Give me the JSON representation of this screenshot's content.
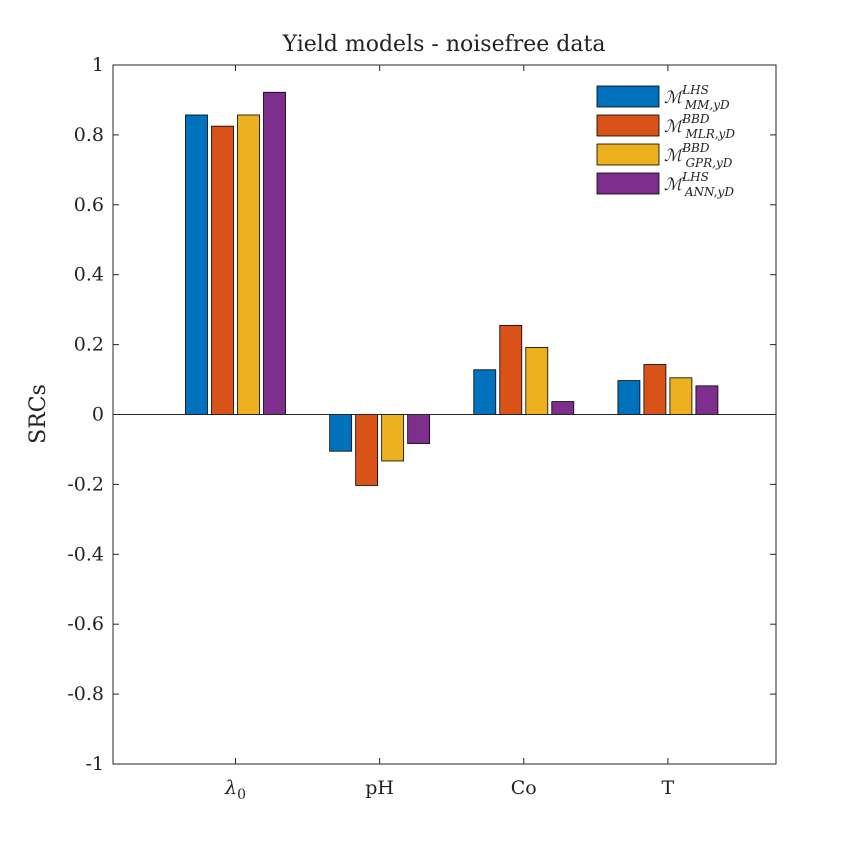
{
  "chart_data": {
    "type": "bar",
    "title": "Yield models - noisefree data",
    "xlabel": "",
    "ylabel": "SRCs",
    "categories": [
      "λ",
      "pH",
      "Co",
      "T"
    ],
    "category_subscripts": [
      "0",
      "",
      "",
      ""
    ],
    "ylim": [
      -1,
      1
    ],
    "yticks": [
      -1,
      -0.8,
      -0.6,
      -0.4,
      -0.2,
      0,
      0.2,
      0.4,
      0.6,
      0.8,
      1
    ],
    "ytick_labels": [
      "-1",
      "-0.8",
      "-0.6",
      "-0.4",
      "-0.2",
      "0",
      "0.2",
      "0.4",
      "0.6",
      "0.8",
      "1"
    ],
    "grid": false,
    "legend_position": "top-right",
    "series": [
      {
        "name": "M_{MM,y_D}^{LHS}",
        "legend": {
          "symbol": "ℳ",
          "sup": "LHS",
          "sub": "MM,yD"
        },
        "color": "#0072BD",
        "values": [
          0.857,
          -0.105,
          0.128,
          0.097
        ]
      },
      {
        "name": "M_{MLR,y_D}^{BBD}",
        "legend": {
          "symbol": "ℳ",
          "sup": "BBD",
          "sub": "MLR,yD"
        },
        "color": "#D95319",
        "values": [
          0.825,
          -0.203,
          0.255,
          0.143
        ]
      },
      {
        "name": "M_{GPR,y_D}^{BBD}",
        "legend": {
          "symbol": "ℳ",
          "sup": "BBD",
          "sub": "GPR,yD"
        },
        "color": "#EDB120",
        "values": [
          0.857,
          -0.133,
          0.192,
          0.105
        ]
      },
      {
        "name": "M_{ANN,y_D}^{LHS}",
        "legend": {
          "symbol": "ℳ",
          "sup": "LHS",
          "sub": "ANN,yD"
        },
        "color": "#7E2F8E",
        "values": [
          0.922,
          -0.083,
          0.037,
          0.082
        ]
      }
    ]
  }
}
